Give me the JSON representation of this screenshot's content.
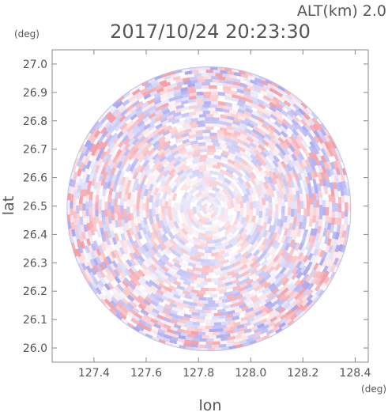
{
  "header": {
    "altitude": "ALT(km) 2.0",
    "timestamp": "2017/10/24 20:23:30"
  },
  "chart_data": {
    "type": "heatmap",
    "title": "2017/10/24 20:23:30",
    "xlabel": "lon",
    "ylabel": "lat",
    "x_unit": "(deg)",
    "y_unit": "(deg)",
    "xlim": [
      127.24,
      128.45
    ],
    "ylim": [
      25.95,
      27.05
    ],
    "x_ticks": [
      127.4,
      127.6,
      127.8,
      128.0,
      128.2,
      128.4
    ],
    "x_tick_labels": [
      "127.4",
      "127.6",
      "127.8",
      "128.0",
      "128.2",
      "128.4"
    ],
    "y_ticks": [
      26.0,
      26.1,
      26.2,
      26.3,
      26.4,
      26.5,
      26.6,
      26.7,
      26.8,
      26.9,
      27.0
    ],
    "y_tick_labels": [
      "26.0",
      "26.1",
      "26.2",
      "26.3",
      "26.4",
      "26.5",
      "26.6",
      "26.7",
      "26.8",
      "26.9",
      "27.0"
    ],
    "center": {
      "lon": 127.84,
      "lat": 26.49
    },
    "radius_deg_lat": 0.5,
    "colors": {
      "positive": "#f4a0a8",
      "negative": "#a8a8f0",
      "neutral": "#ffffff",
      "axis": "#777777"
    },
    "grid": false,
    "legend": "none"
  }
}
